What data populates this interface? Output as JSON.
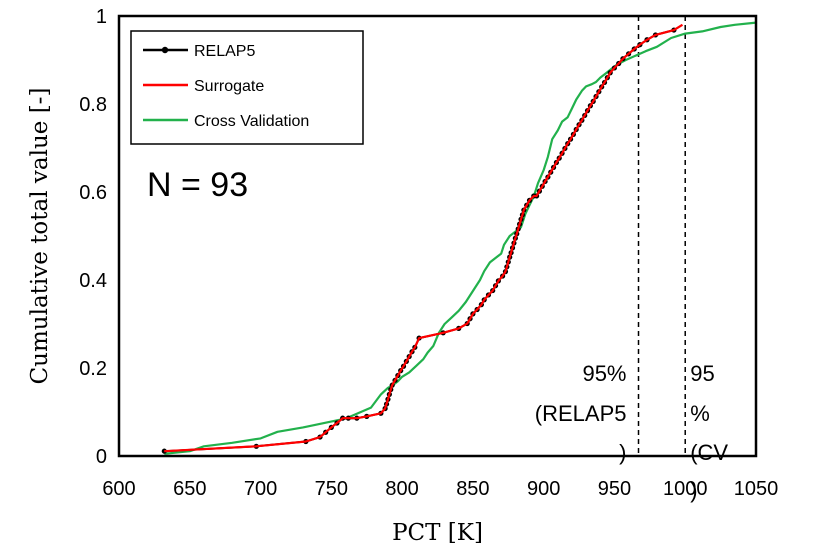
{
  "chart_data": {
    "type": "line",
    "xlabel": "PCT [K]",
    "ylabel": "Cumulative total value [-]",
    "xlim": [
      600,
      1050
    ],
    "ylim": [
      0,
      1
    ],
    "xticks": [
      "600",
      "650",
      "700",
      "750",
      "800",
      "850",
      "900",
      "950",
      "1000",
      "1050"
    ],
    "yticks": [
      "0",
      "0.2",
      "0.4",
      "0.6",
      "0.8",
      "1"
    ],
    "legend": {
      "position": "top-left",
      "entries": [
        "RELAP5",
        "Surrogate",
        "Cross Validation"
      ]
    },
    "annotations": {
      "n_label": "N = 93",
      "relap_line_label": [
        "95%",
        "(RELAP5",
        ")"
      ],
      "cv_line_label": [
        "95",
        "%",
        "(CV",
        ")"
      ]
    },
    "reference_lines": [
      {
        "name": "95% (RELAP5)",
        "x": 967
      },
      {
        "name": "95% (CV)",
        "x": 1000
      }
    ],
    "colors": {
      "RELAP5": "#000000",
      "Surrogate": "#ff0000",
      "Cross Validation": "#22b14c"
    },
    "series": [
      {
        "name": "RELAP5",
        "markers": true,
        "x": [
          632,
          697,
          732,
          742,
          746,
          750,
          754,
          758,
          762,
          768,
          775,
          785,
          788,
          789,
          790,
          791,
          792,
          793,
          795,
          797,
          799,
          801,
          803,
          805,
          807,
          809,
          812,
          829,
          840,
          846,
          848,
          850,
          853,
          856,
          858,
          861,
          864,
          866,
          868,
          871,
          873,
          874,
          875,
          876,
          877,
          878,
          879,
          880,
          881,
          882,
          883,
          884,
          885,
          886,
          888,
          890,
          893,
          895,
          897,
          899,
          901,
          903,
          905,
          907,
          909,
          911,
          913,
          915,
          917,
          919,
          921,
          923,
          925,
          927,
          929,
          931,
          933,
          935,
          937,
          939,
          941,
          943,
          945,
          947,
          950,
          953,
          956,
          960,
          964,
          968,
          973,
          979,
          992
        ],
        "y": [
          0.011,
          0.022,
          0.033,
          0.043,
          0.054,
          0.065,
          0.075,
          0.086,
          0.086,
          0.086,
          0.09,
          0.097,
          0.108,
          0.118,
          0.129,
          0.14,
          0.151,
          0.161,
          0.172,
          0.183,
          0.194,
          0.204,
          0.215,
          0.226,
          0.237,
          0.247,
          0.268,
          0.28,
          0.29,
          0.301,
          0.312,
          0.323,
          0.333,
          0.344,
          0.355,
          0.366,
          0.376,
          0.387,
          0.398,
          0.409,
          0.419,
          0.43,
          0.441,
          0.452,
          0.462,
          0.473,
          0.484,
          0.495,
          0.505,
          0.516,
          0.527,
          0.538,
          0.548,
          0.559,
          0.57,
          0.581,
          0.591,
          0.591,
          0.602,
          0.613,
          0.624,
          0.634,
          0.645,
          0.656,
          0.667,
          0.677,
          0.688,
          0.699,
          0.71,
          0.72,
          0.731,
          0.742,
          0.753,
          0.763,
          0.774,
          0.785,
          0.796,
          0.806,
          0.817,
          0.828,
          0.839,
          0.849,
          0.86,
          0.871,
          0.882,
          0.892,
          0.903,
          0.914,
          0.925,
          0.935,
          0.946,
          0.957,
          0.968
        ]
      },
      {
        "name": "Surrogate",
        "markers": false,
        "x": [
          632,
          697,
          732,
          742,
          746,
          750,
          754,
          758,
          762,
          768,
          775,
          785,
          788,
          789,
          790,
          791,
          792,
          793,
          795,
          797,
          799,
          801,
          803,
          805,
          807,
          809,
          812,
          829,
          840,
          846,
          848,
          850,
          853,
          856,
          858,
          861,
          864,
          866,
          868,
          871,
          873,
          874,
          875,
          876,
          877,
          878,
          879,
          880,
          881,
          882,
          883,
          884,
          885,
          886,
          888,
          890,
          893,
          895,
          897,
          899,
          901,
          903,
          905,
          907,
          909,
          911,
          913,
          915,
          917,
          919,
          921,
          923,
          925,
          927,
          929,
          931,
          933,
          935,
          937,
          939,
          941,
          943,
          945,
          947,
          950,
          953,
          956,
          960,
          964,
          968,
          973,
          979,
          992,
          998
        ],
        "y": [
          0.011,
          0.022,
          0.033,
          0.043,
          0.054,
          0.065,
          0.075,
          0.086,
          0.086,
          0.086,
          0.09,
          0.097,
          0.108,
          0.118,
          0.129,
          0.14,
          0.151,
          0.161,
          0.172,
          0.183,
          0.194,
          0.204,
          0.215,
          0.226,
          0.237,
          0.247,
          0.268,
          0.28,
          0.29,
          0.301,
          0.312,
          0.323,
          0.333,
          0.344,
          0.355,
          0.366,
          0.376,
          0.387,
          0.398,
          0.409,
          0.419,
          0.43,
          0.441,
          0.452,
          0.462,
          0.473,
          0.484,
          0.495,
          0.505,
          0.516,
          0.527,
          0.538,
          0.548,
          0.559,
          0.57,
          0.581,
          0.591,
          0.591,
          0.602,
          0.613,
          0.624,
          0.634,
          0.645,
          0.656,
          0.667,
          0.677,
          0.688,
          0.699,
          0.71,
          0.72,
          0.731,
          0.742,
          0.753,
          0.763,
          0.774,
          0.785,
          0.796,
          0.806,
          0.817,
          0.828,
          0.839,
          0.849,
          0.86,
          0.871,
          0.882,
          0.892,
          0.903,
          0.914,
          0.925,
          0.935,
          0.946,
          0.957,
          0.968,
          0.98
        ]
      },
      {
        "name": "Cross Validation",
        "markers": false,
        "x": [
          632,
          650,
          660,
          680,
          700,
          712,
          730,
          760,
          778,
          785,
          790,
          793,
          797,
          800,
          805,
          810,
          815,
          818,
          822,
          826,
          830,
          835,
          840,
          845,
          850,
          855,
          858,
          862,
          866,
          870,
          872,
          876,
          880,
          884,
          887,
          890,
          893,
          896,
          900,
          903,
          906,
          910,
          913,
          917,
          920,
          923,
          927,
          930,
          934,
          937,
          940,
          944,
          948,
          952,
          958,
          965,
          972,
          980,
          990,
          1000,
          1012,
          1025,
          1035,
          1050
        ],
        "y": [
          0.005,
          0.011,
          0.022,
          0.03,
          0.04,
          0.055,
          0.065,
          0.085,
          0.11,
          0.14,
          0.155,
          0.16,
          0.17,
          0.18,
          0.19,
          0.205,
          0.22,
          0.235,
          0.25,
          0.28,
          0.3,
          0.315,
          0.33,
          0.35,
          0.375,
          0.4,
          0.42,
          0.44,
          0.45,
          0.46,
          0.48,
          0.5,
          0.51,
          0.52,
          0.55,
          0.57,
          0.59,
          0.62,
          0.65,
          0.68,
          0.72,
          0.74,
          0.76,
          0.77,
          0.79,
          0.81,
          0.83,
          0.84,
          0.845,
          0.85,
          0.86,
          0.87,
          0.88,
          0.89,
          0.9,
          0.91,
          0.92,
          0.93,
          0.95,
          0.96,
          0.965,
          0.975,
          0.98,
          0.985
        ]
      }
    ]
  }
}
